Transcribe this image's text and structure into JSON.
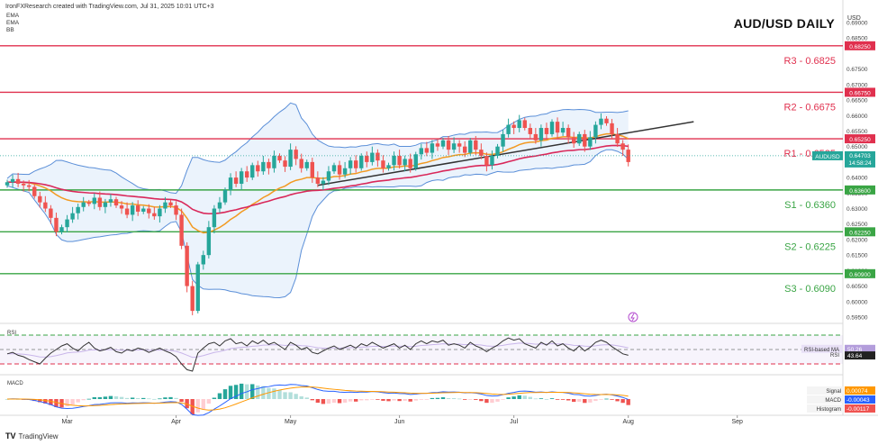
{
  "header": {
    "credit": "IronFXResearch created with TradingView.com, Jul 31, 2025 10:01 UTC+3",
    "indicators": [
      "EMA",
      "EMA",
      "BB"
    ]
  },
  "chart_data": {
    "type": "candlestick",
    "title": "AUD/USD DAILY",
    "currency": "USD",
    "price_axis": {
      "min": 0.595,
      "max": 0.69,
      "ticks": [
        "0.69000",
        "0.68500",
        "0.67500",
        "0.67000",
        "0.66500",
        "0.66000",
        "0.65500",
        "0.65000",
        "0.64500",
        "0.64000",
        "0.63500",
        "0.63000",
        "0.62500",
        "0.62000",
        "0.61500",
        "0.61000",
        "0.60500",
        "0.60000",
        "0.59500"
      ]
    },
    "x_axis": {
      "labels": [
        "Mar",
        "Apr",
        "May",
        "Jun",
        "Jul",
        "Aug",
        "Sep"
      ],
      "label_index": [
        11,
        31,
        52,
        72,
        93,
        114,
        134
      ]
    },
    "levels": [
      {
        "name": "R3",
        "label": "R3 - 0.6825",
        "value": 0.6825,
        "tag": "0.68250",
        "color": "#e0304e"
      },
      {
        "name": "R2",
        "label": "R2 - 0.6675",
        "value": 0.6675,
        "tag": "0.66750",
        "color": "#e0304e"
      },
      {
        "name": "R1",
        "label": "R1 - 0.6525",
        "value": 0.6525,
        "tag": "0.65250",
        "color": "#e0304e"
      },
      {
        "name": "S1",
        "label": "S1 - 0.6360",
        "value": 0.636,
        "tag": "0.63600",
        "color": "#3aa545"
      },
      {
        "name": "S2",
        "label": "S2 - 0.6225",
        "value": 0.6225,
        "tag": "0.62250",
        "color": "#3aa545"
      },
      {
        "name": "S3",
        "label": "S3 - 0.6090",
        "value": 0.609,
        "tag": "0.60900",
        "color": "#3aa545"
      }
    ],
    "last_price": {
      "symbol": "AUDUSD",
      "value": 0.64703,
      "label": "0.64703",
      "countdown": "14:58:24"
    },
    "trendline": {
      "from": [
        57,
        0.6375
      ],
      "to": [
        126,
        0.658
      ]
    },
    "closes": [
      0.6385,
      0.6395,
      0.638,
      0.6375,
      0.637,
      0.634,
      0.632,
      0.63,
      0.627,
      0.6225,
      0.624,
      0.6265,
      0.6285,
      0.6305,
      0.632,
      0.6315,
      0.6335,
      0.6305,
      0.632,
      0.633,
      0.631,
      0.63,
      0.628,
      0.631,
      0.629,
      0.63,
      0.6285,
      0.6275,
      0.63,
      0.632,
      0.631,
      0.628,
      0.618,
      0.605,
      0.597,
      0.612,
      0.615,
      0.624,
      0.63,
      0.632,
      0.636,
      0.64,
      0.638,
      0.642,
      0.64,
      0.644,
      0.642,
      0.645,
      0.643,
      0.647,
      0.6455,
      0.6435,
      0.649,
      0.646,
      0.643,
      0.645,
      0.64,
      0.638,
      0.639,
      0.642,
      0.644,
      0.641,
      0.643,
      0.6455,
      0.643,
      0.647,
      0.645,
      0.648,
      0.6455,
      0.643,
      0.644,
      0.647,
      0.644,
      0.646,
      0.643,
      0.6475,
      0.6495,
      0.648,
      0.651,
      0.65,
      0.652,
      0.649,
      0.651,
      0.65,
      0.648,
      0.652,
      0.649,
      0.647,
      0.644,
      0.647,
      0.65,
      0.654,
      0.657,
      0.656,
      0.6585,
      0.656,
      0.654,
      0.652,
      0.656,
      0.654,
      0.658,
      0.6545,
      0.656,
      0.653,
      0.651,
      0.654,
      0.65,
      0.653,
      0.657,
      0.659,
      0.6575,
      0.654,
      0.651,
      0.649,
      0.645
    ],
    "rsi": {
      "levels": [
        70,
        50,
        30
      ],
      "rsi_value": "43.64",
      "ma_label": "RSI-based MA",
      "ma_value": "50.26",
      "rsi_label": "RSI",
      "values": [
        44,
        46,
        42,
        40,
        36,
        33,
        30,
        38,
        45,
        50,
        55,
        58,
        52,
        48,
        55,
        60,
        52,
        48,
        50,
        53,
        47,
        45,
        50,
        48,
        52,
        50,
        46,
        49,
        52,
        48,
        45,
        40,
        30,
        22,
        20,
        45,
        52,
        58,
        60,
        55,
        62,
        65,
        58,
        60,
        55,
        62,
        58,
        63,
        57,
        60,
        55,
        50,
        60,
        56,
        50,
        53,
        46,
        44,
        48,
        52,
        55,
        50,
        53,
        56,
        52,
        58,
        55,
        60,
        56,
        52,
        55,
        58,
        52,
        56,
        50,
        58,
        62,
        58,
        62,
        60,
        63,
        56,
        58,
        56,
        52,
        60,
        55,
        52,
        47,
        52,
        56,
        62,
        66,
        63,
        65,
        58,
        55,
        52,
        60,
        56,
        62,
        55,
        58,
        52,
        48,
        55,
        48,
        53,
        60,
        63,
        60,
        54,
        49,
        44,
        42
      ]
    },
    "macd": {
      "macd_label": "MACD",
      "macd_value": "-0.00043",
      "signal_label": "Signal",
      "signal_value": "0.00074",
      "hist_label": "Histogram",
      "hist_value": "-0.00117"
    }
  }
}
